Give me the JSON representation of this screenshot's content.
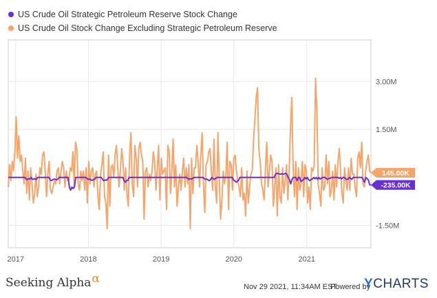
{
  "chart_data": {
    "type": "line",
    "x_axis": {
      "tick_labels": [
        "2017",
        "2018",
        "2019",
        "2020",
        "2021"
      ],
      "range": [
        "2016-11-25",
        "2021-11-19"
      ]
    },
    "y_axis": {
      "tick_labels": [
        "3.00M",
        "1.50M",
        "-1.50M"
      ],
      "tick_values": [
        3000000,
        1500000,
        -1500000
      ],
      "range": [
        -2200000,
        4300000
      ],
      "position": "right"
    },
    "grid": true,
    "legend_position": "top-left",
    "series": [
      {
        "name": "US Crude Oil Strategic Petroleum Reserve Stock Change",
        "color": "#6a2fd0",
        "last_value_label": "-235.00K",
        "values": [
          0,
          0,
          0,
          0,
          0,
          0,
          0,
          0,
          0,
          0,
          0,
          0,
          0,
          0,
          -50000,
          -70000,
          -40000,
          -50000,
          0,
          -60000,
          -50000,
          -40000,
          -70000,
          0,
          0,
          0,
          0,
          0,
          0,
          0,
          0,
          0,
          0,
          -80000,
          -100000,
          -70000,
          -50000,
          -60000,
          -80000,
          -50000,
          0,
          0,
          0,
          0,
          0,
          0,
          0,
          0,
          -300000,
          -400000,
          -300000,
          -350000,
          -300000,
          0,
          0,
          0,
          0,
          0,
          0,
          0,
          0,
          0,
          -40000,
          -60000,
          -50000,
          -80000,
          -90000,
          -70000,
          -50000,
          0,
          0,
          0,
          0,
          0,
          -50000,
          -100000,
          -80000,
          -90000,
          -60000,
          0,
          0,
          0,
          0,
          0,
          0,
          0,
          0,
          0,
          0,
          0,
          0,
          -100000,
          -150000,
          -100000,
          -90000,
          0,
          0,
          0,
          0,
          0,
          0,
          0,
          0,
          0,
          0,
          0,
          0,
          0,
          0,
          0,
          0,
          0,
          0,
          0,
          0,
          0,
          0,
          0,
          0,
          0,
          0,
          0,
          0,
          0,
          0,
          0,
          0,
          0,
          0,
          0,
          0,
          0,
          0,
          0,
          0,
          0,
          0,
          0,
          0,
          0,
          0,
          -30000,
          -60000,
          -40000,
          -50000,
          -30000,
          0,
          0,
          0,
          0,
          0,
          0,
          0,
          0,
          -40000,
          -60000,
          -50000,
          -80000,
          -100000,
          -70000,
          0,
          -40000,
          -60000,
          -30000,
          0,
          0,
          0,
          0,
          0,
          0,
          0,
          0,
          0,
          0,
          0,
          0,
          0,
          -80000,
          -100000,
          -150000,
          -120000,
          -90000,
          0,
          0,
          0,
          0,
          0,
          0,
          0,
          0,
          0,
          0,
          0,
          0,
          0,
          0,
          0,
          0,
          0,
          0,
          0,
          0,
          0,
          0,
          0,
          0,
          0,
          0,
          0,
          0,
          100000,
          130000,
          120000,
          110000,
          100000,
          120000,
          100000,
          110000,
          130000,
          90000,
          0,
          -80000,
          -200000,
          -60000,
          0,
          0,
          0,
          -100000,
          0,
          0,
          -130000,
          -100000,
          -70000,
          0,
          -50000,
          0,
          -70000,
          -100000,
          -60000,
          -50000,
          0,
          -40000,
          0,
          -60000,
          0,
          -50000,
          -30000,
          0,
          0,
          0,
          -40000,
          -60000,
          -30000,
          -30000,
          0,
          0,
          0,
          0,
          0,
          0,
          -30000,
          0,
          -50000,
          0,
          0,
          -40000,
          -70000,
          -50000,
          0,
          -30000,
          -60000,
          0,
          0,
          0,
          0,
          0,
          0,
          0,
          0,
          -80000,
          -150000,
          0,
          -40000,
          -80000,
          -230000,
          -235000
        ]
      },
      {
        "name": "US Crude Oil Stock Change Excluding Strategic Petroleum Reserve",
        "color": "#f7a46a",
        "last_value_label": "145.00K",
        "values": [
          -300000,
          400000,
          -100000,
          500000,
          200000,
          800000,
          1900000,
          600000,
          1300000,
          500000,
          700000,
          200000,
          -200000,
          600000,
          -500000,
          200000,
          -700000,
          300000,
          -200000,
          -800000,
          -500000,
          100000,
          -600000,
          -300000,
          300000,
          100000,
          700000,
          800000,
          200000,
          -600000,
          100000,
          500000,
          -400000,
          -500000,
          -300000,
          -100000,
          -200000,
          200000,
          300000,
          -200000,
          200000,
          500000,
          300000,
          -300000,
          200000,
          -100000,
          -100000,
          300000,
          200000,
          800000,
          -300000,
          1100000,
          900000,
          -200000,
          -400000,
          200000,
          -100000,
          200000,
          -400000,
          300000,
          -800000,
          500000,
          -200000,
          200000,
          300000,
          -300000,
          100000,
          200000,
          -600000,
          -1000000,
          100000,
          400000,
          800000,
          -600000,
          -800000,
          -1600000,
          700000,
          -900000,
          300000,
          400000,
          0,
          700000,
          1000000,
          300000,
          -300000,
          200000,
          900000,
          500000,
          -400000,
          300000,
          -500000,
          -900000,
          700000,
          1400000,
          -200000,
          -600000,
          1000000,
          600000,
          -300000,
          900000,
          1100000,
          700000,
          500000,
          -1300000,
          200000,
          300000,
          -300000,
          100000,
          -100000,
          200000,
          800000,
          500000,
          -400000,
          300000,
          1000000,
          -700000,
          600000,
          100000,
          200000,
          300000,
          -1000000,
          1000000,
          800000,
          -500000,
          200000,
          1200000,
          -300000,
          400000,
          -900000,
          -300000,
          100000,
          -400000,
          200000,
          600000,
          -300000,
          300000,
          -200000,
          400000,
          -1600000,
          600000,
          -500000,
          300000,
          300000,
          1000000,
          500000,
          -300000,
          700000,
          1400000,
          -200000,
          -1100000,
          400000,
          500000,
          800000,
          900000,
          200000,
          -400000,
          1200000,
          -300000,
          -800000,
          1400000,
          -100000,
          -1300000,
          -700000,
          200000,
          -200000,
          100000,
          1100000,
          -1000000,
          500000,
          400000,
          -400000,
          600000,
          700000,
          200000,
          -100000,
          -300000,
          -600000,
          300000,
          -700000,
          -500000,
          -1200000,
          200000,
          -800000,
          -300000,
          100000,
          200000,
          1200000,
          1800000,
          2500000,
          2800000,
          900000,
          500000,
          -200000,
          -400000,
          -700000,
          300000,
          1100000,
          -300000,
          200000,
          700000,
          500000,
          -900000,
          -300000,
          300000,
          -1200000,
          400000,
          -600000,
          -800000,
          300000,
          -500000,
          -100000,
          400000,
          -700000,
          200000,
          1600000,
          2500000,
          300000,
          -600000,
          500000,
          -1000000,
          300000,
          -400000,
          -200000,
          500000,
          -600000,
          400000,
          200000,
          -800000,
          -300000,
          -1000000,
          300000,
          200000,
          400000,
          3100000,
          2100000,
          -200000,
          -500000,
          -900000,
          300000,
          -400000,
          -300000,
          700000,
          -200000,
          500000,
          -600000,
          -400000,
          200000,
          -700000,
          400000,
          -300000,
          500000,
          900000,
          200000,
          -500000,
          -800000,
          300000,
          -100000,
          -400000,
          300000,
          -400000,
          600000,
          100000,
          100000,
          -300000,
          -600000,
          600000,
          800000,
          300000,
          1100000,
          -200000,
          -300000,
          200000,
          500000,
          700000,
          200000,
          145000
        ]
      }
    ]
  },
  "footer": {
    "brand": "Seeking Alpha",
    "brand_mark": "α",
    "timestamp": "Nov 29 2021, 11:34AM EST.",
    "powered_by": "Powered by",
    "ycharts_y": "Y",
    "ycharts_rest": "CHARTS"
  }
}
